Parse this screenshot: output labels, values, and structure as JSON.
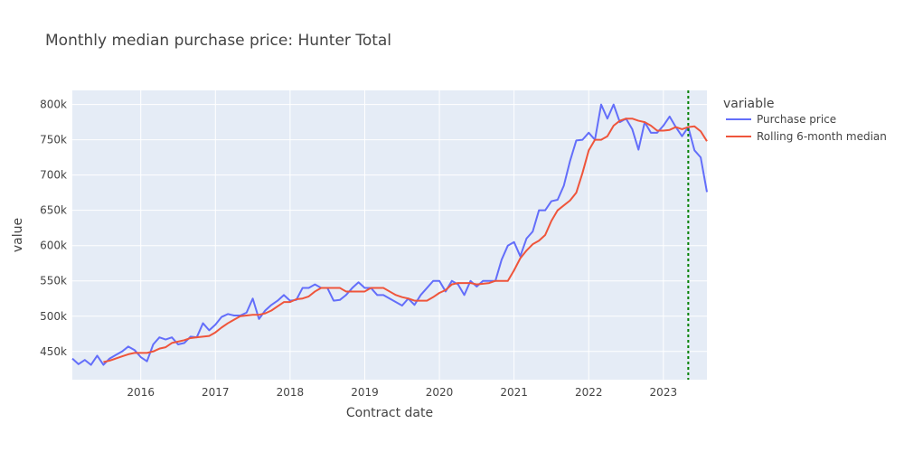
{
  "chart_data": {
    "type": "line",
    "title": "Monthly median purchase price: Hunter Total",
    "xlabel": "Contract date",
    "ylabel": "value",
    "x_tick_labels": [
      "2016",
      "2017",
      "2018",
      "2019",
      "2020",
      "2021",
      "2022",
      "2023"
    ],
    "y_tick_labels": [
      "450k",
      "500k",
      "550k",
      "600k",
      "650k",
      "700k",
      "750k",
      "800k"
    ],
    "x_range": [
      "2015-02",
      "2023-08"
    ],
    "ylim": [
      410000,
      820000
    ],
    "grid": true,
    "legend": {
      "title": "variable",
      "placement": "right"
    },
    "vertical_line": {
      "x": "2023-05",
      "style": "dotted",
      "color": "#008000"
    },
    "series": [
      {
        "name": "Purchase price",
        "color": "#636efa",
        "points": [
          [
            "2015-02",
            440000
          ],
          [
            "2015-03",
            432000
          ],
          [
            "2015-04",
            438000
          ],
          [
            "2015-05",
            431000
          ],
          [
            "2015-06",
            444000
          ],
          [
            "2015-07",
            431000
          ],
          [
            "2015-08",
            440000
          ],
          [
            "2015-09",
            445000
          ],
          [
            "2015-10",
            450000
          ],
          [
            "2015-11",
            457000
          ],
          [
            "2015-12",
            452000
          ],
          [
            "2016-01",
            442000
          ],
          [
            "2016-02",
            436000
          ],
          [
            "2016-03",
            460000
          ],
          [
            "2016-04",
            470000
          ],
          [
            "2016-05",
            467000
          ],
          [
            "2016-06",
            470000
          ],
          [
            "2016-07",
            460000
          ],
          [
            "2016-08",
            462000
          ],
          [
            "2016-09",
            471000
          ],
          [
            "2016-10",
            470000
          ],
          [
            "2016-11",
            490000
          ],
          [
            "2016-12",
            480000
          ],
          [
            "2017-01",
            488000
          ],
          [
            "2017-02",
            499000
          ],
          [
            "2017-03",
            503000
          ],
          [
            "2017-04",
            501000
          ],
          [
            "2017-05",
            501000
          ],
          [
            "2017-06",
            505000
          ],
          [
            "2017-07",
            525000
          ],
          [
            "2017-08",
            496000
          ],
          [
            "2017-09",
            508000
          ],
          [
            "2017-10",
            516000
          ],
          [
            "2017-11",
            522000
          ],
          [
            "2017-12",
            530000
          ],
          [
            "2018-01",
            522000
          ],
          [
            "2018-02",
            523000
          ],
          [
            "2018-03",
            540000
          ],
          [
            "2018-04",
            540000
          ],
          [
            "2018-05",
            545000
          ],
          [
            "2018-06",
            540000
          ],
          [
            "2018-07",
            540000
          ],
          [
            "2018-08",
            522000
          ],
          [
            "2018-09",
            523000
          ],
          [
            "2018-10",
            530000
          ],
          [
            "2018-11",
            540000
          ],
          [
            "2018-12",
            548000
          ],
          [
            "2019-01",
            540000
          ],
          [
            "2019-02",
            540000
          ],
          [
            "2019-03",
            530000
          ],
          [
            "2019-04",
            530000
          ],
          [
            "2019-05",
            525000
          ],
          [
            "2019-06",
            520000
          ],
          [
            "2019-07",
            515000
          ],
          [
            "2019-08",
            525000
          ],
          [
            "2019-09",
            516000
          ],
          [
            "2019-10",
            530000
          ],
          [
            "2019-11",
            540000
          ],
          [
            "2019-12",
            550000
          ],
          [
            "2020-01",
            550000
          ],
          [
            "2020-02",
            535000
          ],
          [
            "2020-03",
            550000
          ],
          [
            "2020-04",
            545000
          ],
          [
            "2020-05",
            530000
          ],
          [
            "2020-06",
            550000
          ],
          [
            "2020-07",
            542000
          ],
          [
            "2020-08",
            550000
          ],
          [
            "2020-09",
            550000
          ],
          [
            "2020-10",
            550000
          ],
          [
            "2020-11",
            580000
          ],
          [
            "2020-12",
            600000
          ],
          [
            "2021-01",
            605000
          ],
          [
            "2021-02",
            585000
          ],
          [
            "2021-03",
            610000
          ],
          [
            "2021-04",
            620000
          ],
          [
            "2021-05",
            650000
          ],
          [
            "2021-06",
            650000
          ],
          [
            "2021-07",
            663000
          ],
          [
            "2021-08",
            665000
          ],
          [
            "2021-09",
            685000
          ],
          [
            "2021-10",
            720000
          ],
          [
            "2021-11",
            749000
          ],
          [
            "2021-12",
            750000
          ],
          [
            "2022-01",
            760000
          ],
          [
            "2022-02",
            750000
          ],
          [
            "2022-03",
            800000
          ],
          [
            "2022-04",
            780000
          ],
          [
            "2022-05",
            800000
          ],
          [
            "2022-06",
            775000
          ],
          [
            "2022-07",
            780000
          ],
          [
            "2022-08",
            765000
          ],
          [
            "2022-09",
            736000
          ],
          [
            "2022-10",
            775000
          ],
          [
            "2022-11",
            760000
          ],
          [
            "2022-12",
            760000
          ],
          [
            "2023-01",
            770000
          ],
          [
            "2023-02",
            783000
          ],
          [
            "2023-03",
            768000
          ],
          [
            "2023-04",
            755000
          ],
          [
            "2023-05",
            768000
          ],
          [
            "2023-06",
            735000
          ],
          [
            "2023-07",
            725000
          ],
          [
            "2023-08",
            676000
          ]
        ]
      },
      {
        "name": "Rolling 6-month median",
        "color": "#ef553b",
        "points": [
          [
            "2015-07",
            435000
          ],
          [
            "2015-08",
            437000
          ],
          [
            "2015-09",
            440000
          ],
          [
            "2015-10",
            443000
          ],
          [
            "2015-11",
            446000
          ],
          [
            "2015-12",
            448000
          ],
          [
            "2016-01",
            448000
          ],
          [
            "2016-02",
            448000
          ],
          [
            "2016-03",
            450000
          ],
          [
            "2016-04",
            454000
          ],
          [
            "2016-05",
            456000
          ],
          [
            "2016-06",
            462000
          ],
          [
            "2016-07",
            464000
          ],
          [
            "2016-08",
            466000
          ],
          [
            "2016-09",
            469000
          ],
          [
            "2016-10",
            470000
          ],
          [
            "2016-11",
            471000
          ],
          [
            "2016-12",
            472000
          ],
          [
            "2017-01",
            477000
          ],
          [
            "2017-02",
            484000
          ],
          [
            "2017-03",
            490000
          ],
          [
            "2017-04",
            495000
          ],
          [
            "2017-05",
            500000
          ],
          [
            "2017-06",
            501000
          ],
          [
            "2017-07",
            502000
          ],
          [
            "2017-08",
            502000
          ],
          [
            "2017-09",
            504000
          ],
          [
            "2017-10",
            508000
          ],
          [
            "2017-11",
            514000
          ],
          [
            "2017-12",
            520000
          ],
          [
            "2018-01",
            520000
          ],
          [
            "2018-02",
            524000
          ],
          [
            "2018-03",
            525000
          ],
          [
            "2018-04",
            528000
          ],
          [
            "2018-05",
            535000
          ],
          [
            "2018-06",
            540000
          ],
          [
            "2018-07",
            540000
          ],
          [
            "2018-08",
            540000
          ],
          [
            "2018-09",
            540000
          ],
          [
            "2018-10",
            535000
          ],
          [
            "2018-11",
            535000
          ],
          [
            "2018-12",
            535000
          ],
          [
            "2019-01",
            535000
          ],
          [
            "2019-02",
            540000
          ],
          [
            "2019-03",
            540000
          ],
          [
            "2019-04",
            540000
          ],
          [
            "2019-05",
            535000
          ],
          [
            "2019-06",
            530000
          ],
          [
            "2019-07",
            527000
          ],
          [
            "2019-08",
            525000
          ],
          [
            "2019-09",
            522000
          ],
          [
            "2019-10",
            522000
          ],
          [
            "2019-11",
            522000
          ],
          [
            "2019-12",
            527000
          ],
          [
            "2020-01",
            533000
          ],
          [
            "2020-02",
            537000
          ],
          [
            "2020-03",
            545000
          ],
          [
            "2020-04",
            547000
          ],
          [
            "2020-05",
            547000
          ],
          [
            "2020-06",
            547000
          ],
          [
            "2020-07",
            545000
          ],
          [
            "2020-08",
            546000
          ],
          [
            "2020-09",
            547000
          ],
          [
            "2020-10",
            550000
          ],
          [
            "2020-11",
            550000
          ],
          [
            "2020-12",
            550000
          ],
          [
            "2021-01",
            565000
          ],
          [
            "2021-02",
            582000
          ],
          [
            "2021-03",
            593000
          ],
          [
            "2021-04",
            602000
          ],
          [
            "2021-05",
            607000
          ],
          [
            "2021-06",
            615000
          ],
          [
            "2021-07",
            635000
          ],
          [
            "2021-08",
            650000
          ],
          [
            "2021-09",
            657000
          ],
          [
            "2021-10",
            664000
          ],
          [
            "2021-11",
            675000
          ],
          [
            "2021-12",
            703000
          ],
          [
            "2022-01",
            735000
          ],
          [
            "2022-02",
            750000
          ],
          [
            "2022-03",
            750000
          ],
          [
            "2022-04",
            755000
          ],
          [
            "2022-05",
            770000
          ],
          [
            "2022-06",
            777000
          ],
          [
            "2022-07",
            780000
          ],
          [
            "2022-08",
            780000
          ],
          [
            "2022-09",
            777000
          ],
          [
            "2022-10",
            775000
          ],
          [
            "2022-11",
            770000
          ],
          [
            "2022-12",
            763000
          ],
          [
            "2023-01",
            763000
          ],
          [
            "2023-02",
            764000
          ],
          [
            "2023-03",
            768000
          ],
          [
            "2023-04",
            765000
          ],
          [
            "2023-05",
            768000
          ],
          [
            "2023-06",
            769000
          ],
          [
            "2023-07",
            762000
          ],
          [
            "2023-08",
            748000
          ]
        ]
      }
    ]
  }
}
